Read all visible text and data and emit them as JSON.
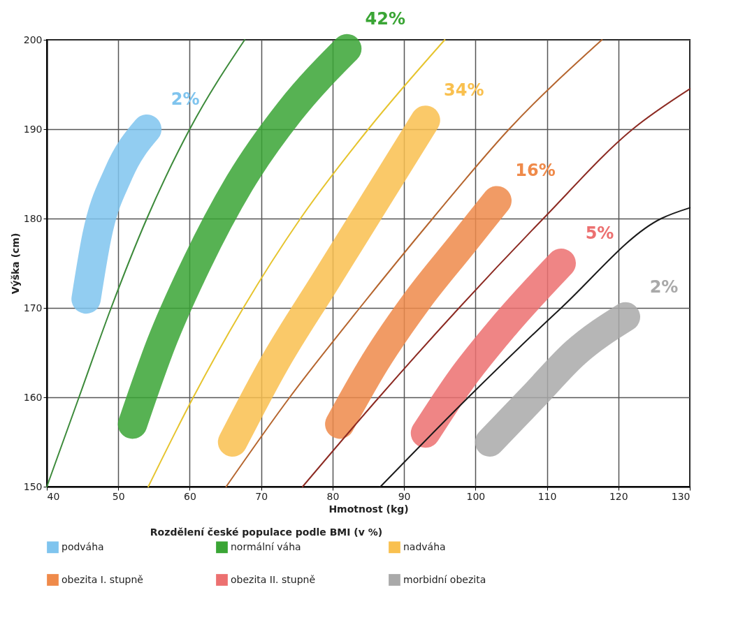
{
  "chart_data": {
    "type": "line",
    "xlabel": "Hmotnost (kg)",
    "ylabel": "Výška (cm)",
    "legend_title": "Rozdělení české populace podle BMI (v %)",
    "xlim": [
      40,
      130
    ],
    "ylim": [
      150,
      200
    ],
    "xticks": [
      40,
      50,
      60,
      70,
      80,
      90,
      100,
      110,
      120,
      130
    ],
    "yticks": [
      150,
      160,
      170,
      180,
      190,
      200
    ],
    "grid": true,
    "legend": "bottom",
    "marker": "none",
    "line_style": "solid",
    "series": [
      {
        "name": "podváha",
        "color": "#7fc4ee",
        "x": [
          45.5,
          47,
          50,
          54
        ],
        "values": [
          171,
          178,
          185,
          190
        ]
      },
      {
        "name": "normální váha",
        "color": "#3aa535",
        "x": [
          52,
          56,
          61,
          67,
          74,
          82
        ],
        "values": [
          157,
          166,
          175,
          184,
          192,
          199
        ]
      },
      {
        "name": "nadváha",
        "color": "#f9c04f",
        "x": [
          66,
          72,
          79,
          86,
          93
        ],
        "values": [
          155,
          164,
          173,
          182,
          191
        ]
      },
      {
        "name": "obezita I. stupně",
        "color": "#ef8a4a",
        "x": [
          81,
          86,
          92,
          98,
          103
        ],
        "values": [
          157,
          164,
          171,
          177,
          182
        ]
      },
      {
        "name": "obezita II. stupně",
        "color": "#ec7070",
        "x": [
          93,
          98,
          104,
          112
        ],
        "values": [
          156,
          162,
          168,
          175
        ]
      },
      {
        "name": "morbidní obezita",
        "color": "#a9a9a9",
        "x": [
          102,
          108,
          114,
          121
        ],
        "values": [
          155,
          160,
          165,
          169
        ]
      },
      {
        "color": "#3c8a3a",
        "x": [
          40,
          44.5,
          49,
          54,
          60,
          67.7
        ],
        "values": [
          150,
          160,
          170,
          180,
          190,
          200
        ]
      },
      {
        "color": "#e6c42e",
        "x": [
          54.2,
          60.5,
          67.5,
          75.5,
          85,
          95.7
        ],
        "values": [
          150,
          160,
          170,
          180,
          190,
          200
        ]
      },
      {
        "color": "#b5652e",
        "x": [
          65.1,
          74,
          83.8,
          94,
          104.7,
          117.7
        ],
        "values": [
          150,
          160,
          170,
          180,
          190,
          200
        ]
      },
      {
        "color": "#8c2a22",
        "x": [
          75.8,
          86.5,
          97.7,
          109.5,
          122,
          130
        ],
        "values": [
          150,
          160,
          170,
          180,
          190,
          194.5
        ]
      },
      {
        "color": "#1a1a1a",
        "x": [
          86.7,
          99,
          112,
          126,
          130
        ],
        "values": [
          150,
          160,
          170,
          180,
          181.2
        ]
      }
    ],
    "annotations": [
      "2%",
      "42%",
      "34%",
      "16%",
      "5%",
      "2%"
    ]
  }
}
